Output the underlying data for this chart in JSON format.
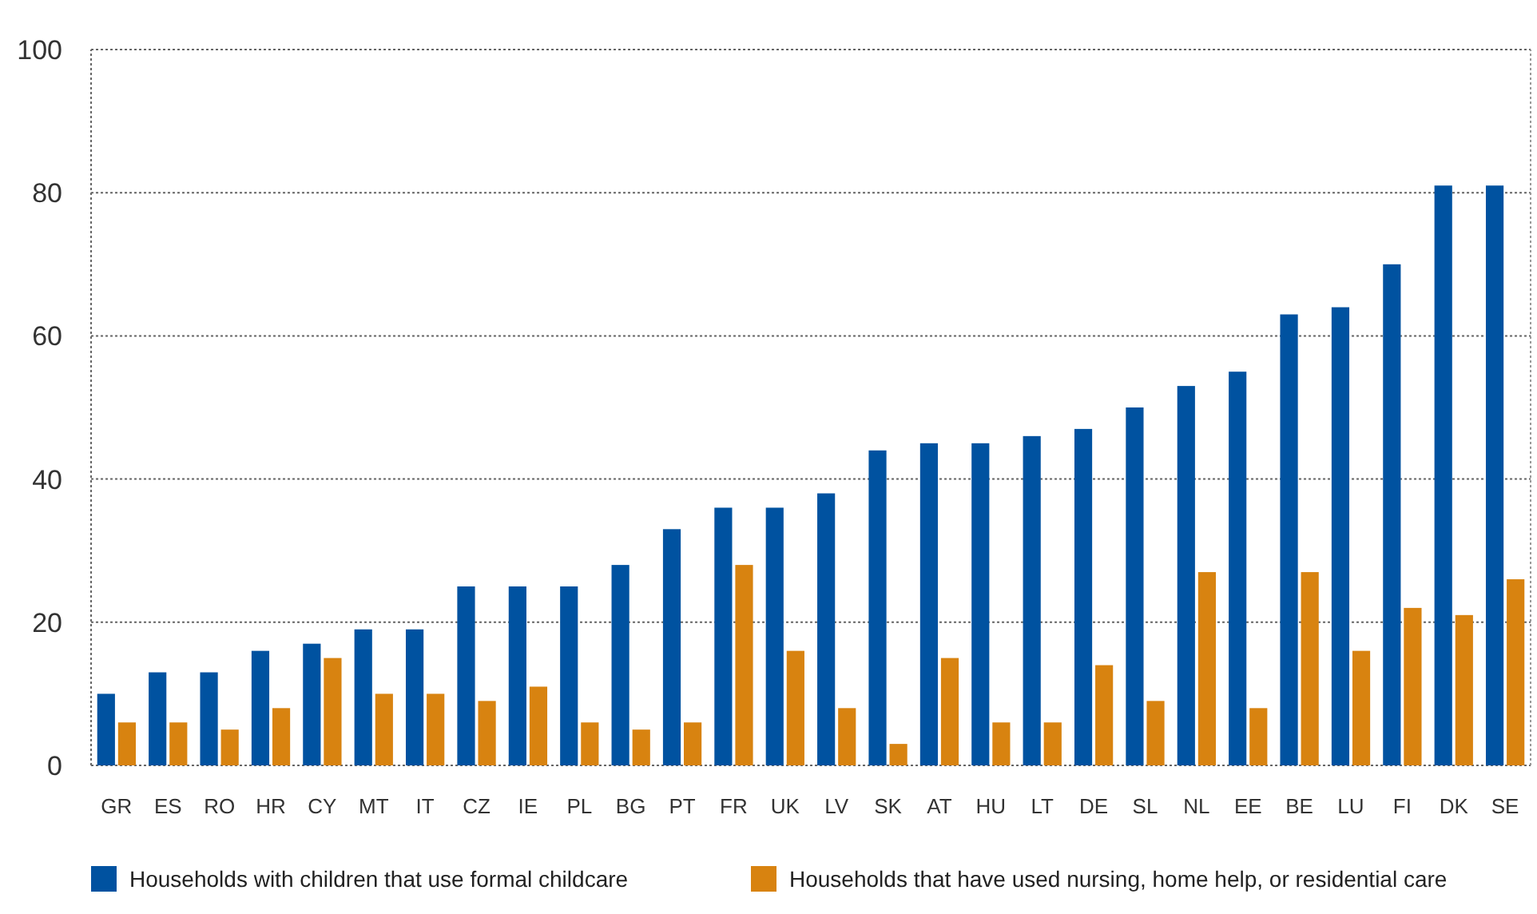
{
  "chart_data": {
    "type": "bar",
    "categories": [
      "GR",
      "ES",
      "RO",
      "HR",
      "CY",
      "MT",
      "IT",
      "CZ",
      "IE",
      "PL",
      "BG",
      "PT",
      "FR",
      "UK",
      "LV",
      "SK",
      "AT",
      "HU",
      "LT",
      "DE",
      "SL",
      "NL",
      "EE",
      "BE",
      "LU",
      "FI",
      "DK",
      "SE"
    ],
    "series": [
      {
        "name": "Households with children that use formal childcare",
        "color": "#0052a0",
        "values": [
          10,
          13,
          13,
          16,
          17,
          19,
          19,
          25,
          25,
          25,
          28,
          33,
          36,
          36,
          38,
          44,
          45,
          45,
          46,
          47,
          50,
          53,
          55,
          63,
          64,
          70,
          81,
          81
        ]
      },
      {
        "name": "Households that have used nursing, home help, or residential care",
        "color": "#d88310",
        "values": [
          6,
          6,
          5,
          8,
          15,
          10,
          10,
          9,
          11,
          6,
          5,
          6,
          28,
          16,
          8,
          3,
          15,
          6,
          6,
          14,
          9,
          27,
          8,
          27,
          16,
          22,
          21,
          26
        ]
      }
    ],
    "ylim": [
      0,
      100
    ],
    "yticks": [
      0,
      20,
      40,
      60,
      80,
      100
    ],
    "grid": "y",
    "legend": "bottom"
  }
}
